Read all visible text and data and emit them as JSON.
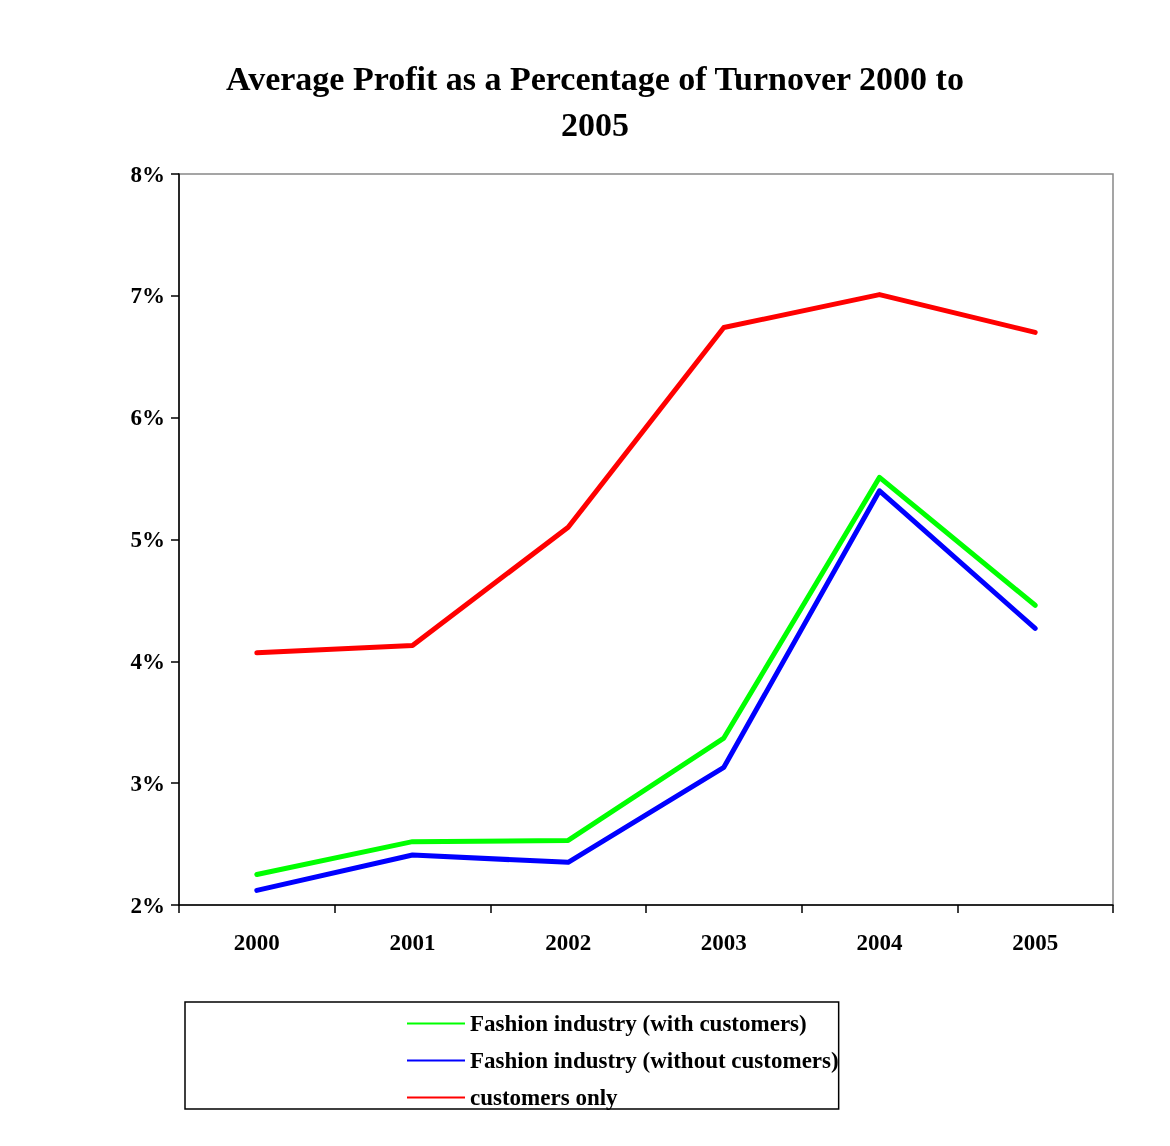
{
  "chart_data": {
    "type": "line",
    "title": "Average Profit as a Percentage of Turnover 2000 to\n2005",
    "categories": [
      "2000",
      "2001",
      "2002",
      "2003",
      "2004",
      "2005"
    ],
    "series": [
      {
        "name": "Fashion industry (with customers)",
        "color": "#00ff00",
        "values": [
          2.25,
          2.52,
          2.53,
          3.37,
          5.51,
          4.46
        ]
      },
      {
        "name": "Fashion industry (without customers)",
        "color": "#0000ff",
        "values": [
          2.12,
          2.41,
          2.35,
          3.13,
          5.4,
          4.27
        ]
      },
      {
        "name": "customers only",
        "color": "#ff0000",
        "values": [
          4.07,
          4.13,
          5.1,
          6.74,
          7.01,
          6.7
        ]
      }
    ],
    "ylim": [
      2,
      8
    ],
    "yticks": [
      {
        "value": 2,
        "label": "2%"
      },
      {
        "value": 3,
        "label": "3%"
      },
      {
        "value": 4,
        "label": "4%"
      },
      {
        "value": 5,
        "label": "5%"
      },
      {
        "value": 6,
        "label": "6%"
      },
      {
        "value": 7,
        "label": "7%"
      },
      {
        "value": 8,
        "label": "8%"
      }
    ],
    "grid": false,
    "legend": "bottom",
    "marker": "none",
    "line_style": "solid"
  }
}
